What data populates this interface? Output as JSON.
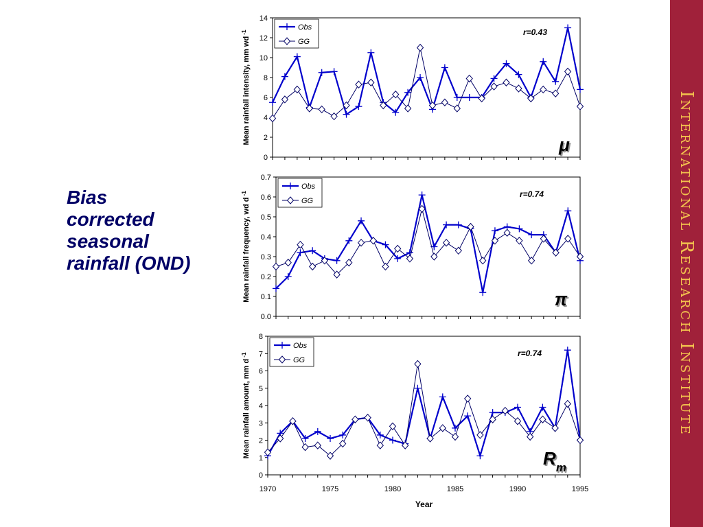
{
  "slide": {
    "heading_lines": [
      "Bias",
      "corrected",
      "seasonal",
      "rainfall (OND)"
    ],
    "side_banner": "International Research Institute",
    "colors": {
      "obs": "#0000cc",
      "gg": "#000066",
      "banner": "#a0213a",
      "banner_text": "#f2c14e",
      "heading": "#000066"
    }
  },
  "chart_data": [
    {
      "type": "line",
      "ylabel": "Mean rainfall intensity, mm wd",
      "ylabel_sup": "-1",
      "xlabel": "",
      "ylim": [
        0,
        14
      ],
      "yticks": [
        "0",
        "2",
        "4",
        "6",
        "8",
        "10",
        "12",
        "14"
      ],
      "x_range": [
        1970,
        1995
      ],
      "x_tick_labels_shown": false,
      "annotation": "r=0.43",
      "symbol": "μ",
      "symbol_sub": "",
      "legend": "top-left",
      "x": [
        1970,
        1971,
        1972,
        1973,
        1974,
        1975,
        1976,
        1977,
        1978,
        1979,
        1980,
        1981,
        1982,
        1983,
        1984,
        1985,
        1986,
        1987,
        1988,
        1989,
        1990,
        1991,
        1992,
        1993,
        1994,
        1995
      ],
      "series": [
        {
          "name": "Obs",
          "marker": "plus",
          "values": [
            5.5,
            8.1,
            10.1,
            5.0,
            8.5,
            8.6,
            4.3,
            5.1,
            10.5,
            5.5,
            4.5,
            6.5,
            8.0,
            4.8,
            9.0,
            6.0,
            6.0,
            6.0,
            7.9,
            9.4,
            8.3,
            6.0,
            9.6,
            7.6,
            13.0,
            6.8
          ]
        },
        {
          "name": "GG",
          "marker": "diamond",
          "values": [
            3.9,
            5.8,
            6.8,
            4.9,
            4.8,
            4.1,
            5.2,
            7.3,
            7.5,
            5.2,
            6.3,
            4.9,
            11.0,
            5.2,
            5.5,
            4.9,
            7.9,
            5.9,
            7.1,
            7.5,
            6.9,
            5.9,
            6.8,
            6.4,
            8.6,
            5.1
          ]
        }
      ]
    },
    {
      "type": "line",
      "ylabel": "Mean rainfall frequency, wd d",
      "ylabel_sup": "-1",
      "xlabel": "",
      "ylim": [
        0.0,
        0.7
      ],
      "yticks": [
        "0.0",
        "0.1",
        "0.2",
        "0.3",
        "0.4",
        "0.5",
        "0.6",
        "0.7"
      ],
      "x_range": [
        1970,
        1995
      ],
      "x_tick_labels_shown": false,
      "annotation": "r=0.74",
      "symbol": "π",
      "symbol_sub": "",
      "legend": "top-left",
      "x": [
        1970,
        1971,
        1972,
        1973,
        1974,
        1975,
        1976,
        1977,
        1978,
        1979,
        1980,
        1981,
        1982,
        1983,
        1984,
        1985,
        1986,
        1987,
        1988,
        1989,
        1990,
        1991,
        1992,
        1993,
        1994,
        1995
      ],
      "series": [
        {
          "name": "Obs",
          "marker": "plus",
          "values": [
            0.14,
            0.2,
            0.32,
            0.33,
            0.29,
            0.28,
            0.38,
            0.48,
            0.38,
            0.36,
            0.29,
            0.32,
            0.61,
            0.35,
            0.46,
            0.46,
            0.44,
            0.12,
            0.43,
            0.45,
            0.44,
            0.41,
            0.41,
            0.32,
            0.53,
            0.28
          ]
        },
        {
          "name": "GG",
          "marker": "diamond",
          "values": [
            0.25,
            0.27,
            0.36,
            0.25,
            0.28,
            0.21,
            0.27,
            0.37,
            0.38,
            0.25,
            0.34,
            0.29,
            0.54,
            0.3,
            0.37,
            0.33,
            0.45,
            0.28,
            0.38,
            0.42,
            0.38,
            0.28,
            0.39,
            0.32,
            0.39,
            0.3
          ]
        }
      ]
    },
    {
      "type": "line",
      "ylabel": "Mean rainfall amount, mm d",
      "ylabel_sup": "-1",
      "xlabel": "Year",
      "ylim": [
        0,
        8
      ],
      "yticks": [
        "0",
        "1",
        "2",
        "3",
        "4",
        "5",
        "6",
        "7",
        "8"
      ],
      "x_range": [
        1970,
        1995
      ],
      "xticks": [
        "1970",
        "1975",
        "1980",
        "1985",
        "1990",
        "1995"
      ],
      "x_tick_labels_shown": true,
      "annotation": "r=0.74",
      "symbol": "R",
      "symbol_sub": "m",
      "legend": "top-left",
      "x": [
        1970,
        1971,
        1972,
        1973,
        1974,
        1975,
        1976,
        1977,
        1978,
        1979,
        1980,
        1981,
        1982,
        1983,
        1984,
        1985,
        1986,
        1987,
        1988,
        1989,
        1990,
        1991,
        1992,
        1993,
        1994,
        1995
      ],
      "series": [
        {
          "name": "Obs",
          "marker": "plus",
          "values": [
            1.1,
            2.4,
            3.1,
            2.1,
            2.5,
            2.1,
            2.3,
            3.2,
            3.3,
            2.3,
            2.0,
            1.8,
            5.0,
            2.1,
            4.5,
            2.7,
            3.4,
            1.1,
            3.6,
            3.6,
            3.9,
            2.5,
            3.9,
            2.7,
            7.2,
            2.0
          ]
        },
        {
          "name": "GG",
          "marker": "diamond",
          "values": [
            1.3,
            2.1,
            3.1,
            1.6,
            1.7,
            1.1,
            1.8,
            3.2,
            3.3,
            1.7,
            2.8,
            1.7,
            6.4,
            2.1,
            2.7,
            2.2,
            4.4,
            2.3,
            3.2,
            3.7,
            3.1,
            2.2,
            3.2,
            2.7,
            4.1,
            2.0
          ]
        }
      ]
    }
  ]
}
